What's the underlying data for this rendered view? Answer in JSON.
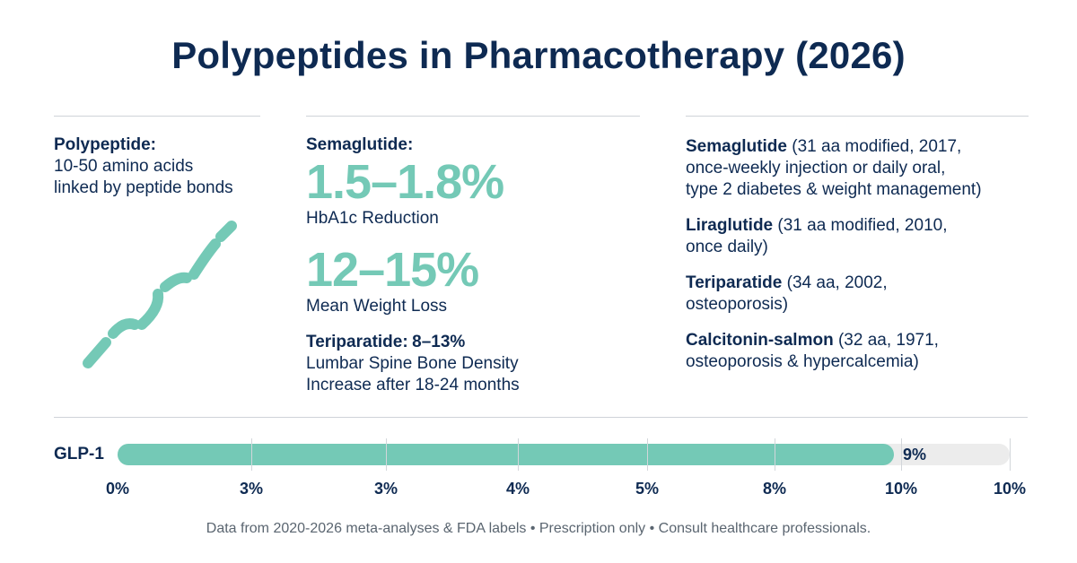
{
  "title": "Polypeptides in Pharmacotherapy (2026)",
  "definition": {
    "term": "Polypeptide:",
    "line1": "10-50 amino acids",
    "line2": "linked by peptide bonds"
  },
  "stats": {
    "semaglutide_label": "Semaglutide:",
    "hba1c_value": "1.5–1.8%",
    "hba1c_label": "HbA1c Reduction",
    "weight_value": "12–15%",
    "weight_label": "Mean Weight Loss",
    "teriparatide_label": "Teriparatide:",
    "teriparatide_value": "8–13%",
    "teriparatide_line1": "Lumbar Spine Bone Density",
    "teriparatide_line2": "Increase after 18-24 months"
  },
  "drugs": [
    {
      "name": "Semaglutide",
      "lines": [
        "(31 aa modified, 2017,",
        "once-weekly injection or daily oral,",
        "type 2 diabetes & weight management)"
      ]
    },
    {
      "name": "Liraglutide",
      "lines": [
        "(31 aa modified, 2010,",
        "once daily)"
      ]
    },
    {
      "name": "Teriparatide",
      "lines": [
        "(34 aa, 2002,",
        "osteoporosis)"
      ]
    },
    {
      "name": "Calcitonin-salmon",
      "lines": [
        "(32 aa, 1971,",
        "osteoporosis & hypercalcemia)"
      ]
    }
  ],
  "bar": {
    "label": "GLP-1",
    "value_label": "9%",
    "fill_fraction": 0.87,
    "ticks": [
      "0%",
      "3%",
      "3%",
      "4%",
      "5%",
      "8%",
      "10%",
      "10%"
    ]
  },
  "footer": "Data from 2020-2026 meta-analyses & FDA labels • Prescription only • Consult healthcare professionals.",
  "colors": {
    "accent": "#74c9b6",
    "navy": "#0e2a52",
    "track": "#ececec"
  }
}
